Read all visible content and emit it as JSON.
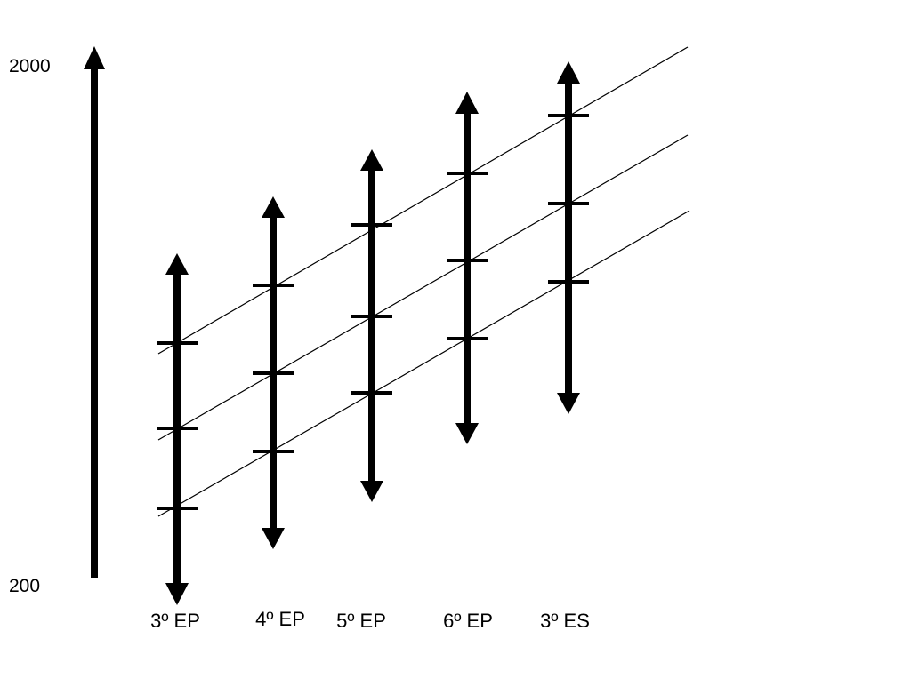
{
  "scale": {
    "max_label": "2000",
    "min_label": "200"
  },
  "grades": [
    {
      "label": "3º EP"
    },
    {
      "label": "4º EP"
    },
    {
      "label": "5º EP"
    },
    {
      "label": "6º EP"
    },
    {
      "label": "3º ES"
    }
  ],
  "colors": {
    "ink": "#000000",
    "background": "#ffffff"
  }
}
